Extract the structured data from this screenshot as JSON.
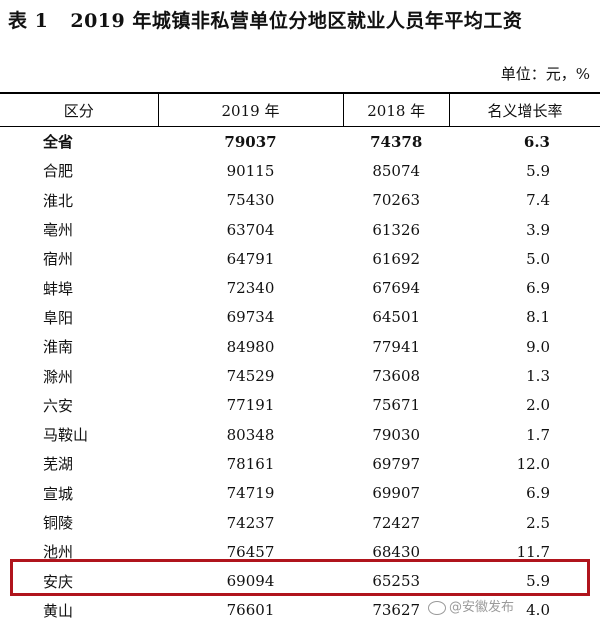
{
  "title": {
    "number": "表 1",
    "text": "2019 年城镇非私营单位分地区就业人员年平均工资"
  },
  "unit": "单位：元，%",
  "table": {
    "headers": [
      "区分",
      "2019 年",
      "2018 年",
      "名义增长率"
    ],
    "rows": [
      {
        "region": "全省",
        "y2019": "79037",
        "y2018": "74378",
        "rate": "6.3"
      },
      {
        "region": "合肥",
        "y2019": "90115",
        "y2018": "85074",
        "rate": "5.9"
      },
      {
        "region": "淮北",
        "y2019": "75430",
        "y2018": "70263",
        "rate": "7.4"
      },
      {
        "region": "亳州",
        "y2019": "63704",
        "y2018": "61326",
        "rate": "3.9"
      },
      {
        "region": "宿州",
        "y2019": "64791",
        "y2018": "61692",
        "rate": "5.0"
      },
      {
        "region": "蚌埠",
        "y2019": "72340",
        "y2018": "67694",
        "rate": "6.9"
      },
      {
        "region": "阜阳",
        "y2019": "69734",
        "y2018": "64501",
        "rate": "8.1"
      },
      {
        "region": "淮南",
        "y2019": "84980",
        "y2018": "77941",
        "rate": "9.0"
      },
      {
        "region": "滁州",
        "y2019": "74529",
        "y2018": "73608",
        "rate": "1.3"
      },
      {
        "region": "六安",
        "y2019": "77191",
        "y2018": "75671",
        "rate": "2.0"
      },
      {
        "region": "马鞍山",
        "y2019": "80348",
        "y2018": "79030",
        "rate": "1.7"
      },
      {
        "region": "芜湖",
        "y2019": "78161",
        "y2018": "69797",
        "rate": "12.0"
      },
      {
        "region": "宣城",
        "y2019": "74719",
        "y2018": "69907",
        "rate": "6.9"
      },
      {
        "region": "铜陵",
        "y2019": "74237",
        "y2018": "72427",
        "rate": "2.5"
      },
      {
        "region": "池州",
        "y2019": "76457",
        "y2018": "68430",
        "rate": "11.7"
      },
      {
        "region": "安庆",
        "y2019": "69094",
        "y2018": "65253",
        "rate": "5.9"
      },
      {
        "region": "黄山",
        "y2019": "76601",
        "y2018": "73627",
        "rate": "4.0"
      }
    ]
  },
  "watermark": "@安徽发布",
  "colors": {
    "highlight_border": "#b0141c"
  }
}
